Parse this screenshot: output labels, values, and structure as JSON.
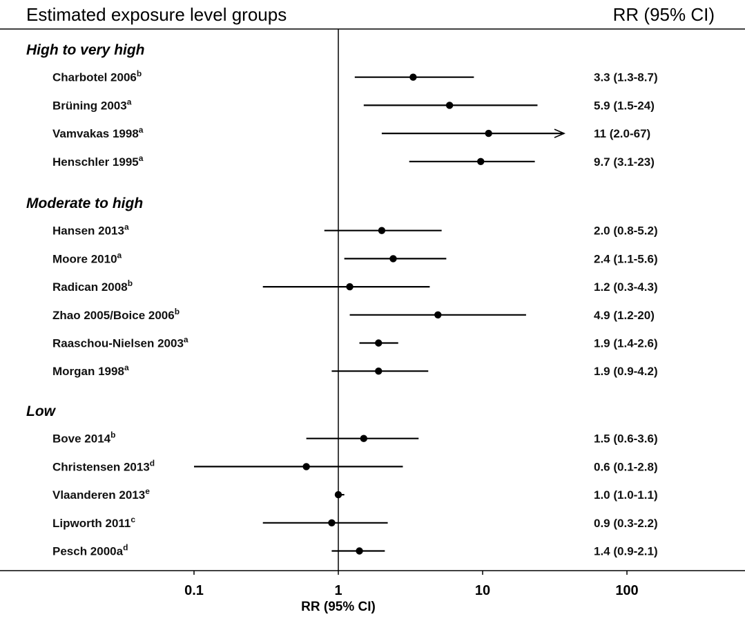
{
  "chart_data": {
    "type": "forest",
    "header_left": "Estimated exposure level groups",
    "header_right": "RR (95% CI)",
    "xlabel": "RR (95% CI)",
    "x_scale": "log",
    "xlim": [
      0.01,
      500
    ],
    "x_ticks": [
      {
        "value": 0.1,
        "label": "0.1"
      },
      {
        "value": 1,
        "label": "1"
      },
      {
        "value": 10,
        "label": "10"
      },
      {
        "value": 100,
        "label": "100"
      }
    ],
    "reference_line": 1,
    "groups": [
      {
        "name": "High to very high",
        "studies": [
          {
            "label": "Charbotel 2006",
            "sup": "b",
            "rr": 3.3,
            "lo": 1.3,
            "hi": 8.7,
            "text": "3.3 (1.3-8.7)",
            "arrow": false
          },
          {
            "label": "Brüning 2003",
            "sup": "a",
            "rr": 5.9,
            "lo": 1.5,
            "hi": 24,
            "text": "5.9 (1.5-24)",
            "arrow": false
          },
          {
            "label": "Vamvakas 1998",
            "sup": "a",
            "rr": 11,
            "lo": 2.0,
            "hi": 67,
            "text": "11 (2.0-67)",
            "arrow": true
          },
          {
            "label": "Henschler 1995",
            "sup": "a",
            "rr": 9.7,
            "lo": 3.1,
            "hi": 23,
            "text": "9.7 (3.1-23)",
            "arrow": false
          }
        ]
      },
      {
        "name": "Moderate to high",
        "studies": [
          {
            "label": "Hansen 2013",
            "sup": "a",
            "rr": 2.0,
            "lo": 0.8,
            "hi": 5.2,
            "text": "2.0 (0.8-5.2)",
            "arrow": false
          },
          {
            "label": "Moore 2010",
            "sup": "a",
            "rr": 2.4,
            "lo": 1.1,
            "hi": 5.6,
            "text": "2.4 (1.1-5.6)",
            "arrow": false
          },
          {
            "label": "Radican 2008",
            "sup": "b",
            "rr": 1.2,
            "lo": 0.3,
            "hi": 4.3,
            "text": "1.2 (0.3-4.3)",
            "arrow": false
          },
          {
            "label": "Zhao 2005/Boice 2006",
            "sup": "b",
            "rr": 4.9,
            "lo": 1.2,
            "hi": 20,
            "text": "4.9 (1.2-20)",
            "arrow": false
          },
          {
            "label": "Raaschou-Nielsen 2003",
            "sup": "a",
            "rr": 1.9,
            "lo": 1.4,
            "hi": 2.6,
            "text": "1.9 (1.4-2.6)",
            "arrow": false
          },
          {
            "label": "Morgan 1998",
            "sup": "a",
            "rr": 1.9,
            "lo": 0.9,
            "hi": 4.2,
            "text": "1.9 (0.9-4.2)",
            "arrow": false
          }
        ]
      },
      {
        "name": "Low",
        "studies": [
          {
            "label": "Bove 2014",
            "sup": "b",
            "rr": 1.5,
            "lo": 0.6,
            "hi": 3.6,
            "text": "1.5 (0.6-3.6)",
            "arrow": false
          },
          {
            "label": "Christensen 2013",
            "sup": "d",
            "rr": 0.6,
            "lo": 0.1,
            "hi": 2.8,
            "text": "0.6 (0.1-2.8)",
            "arrow": false
          },
          {
            "label": "Vlaanderen 2013",
            "sup": "e",
            "rr": 1.0,
            "lo": 1.0,
            "hi": 1.1,
            "text": "1.0 (1.0-1.1)",
            "arrow": false
          },
          {
            "label": "Lipworth 2011",
            "sup": "c",
            "rr": 0.9,
            "lo": 0.3,
            "hi": 2.2,
            "text": "0.9 (0.3-2.2)",
            "arrow": false
          },
          {
            "label": "Pesch 2000a",
            "sup": "d",
            "rr": 1.4,
            "lo": 0.9,
            "hi": 2.1,
            "text": "1.4 (0.9-2.1)",
            "arrow": false
          }
        ]
      }
    ]
  }
}
